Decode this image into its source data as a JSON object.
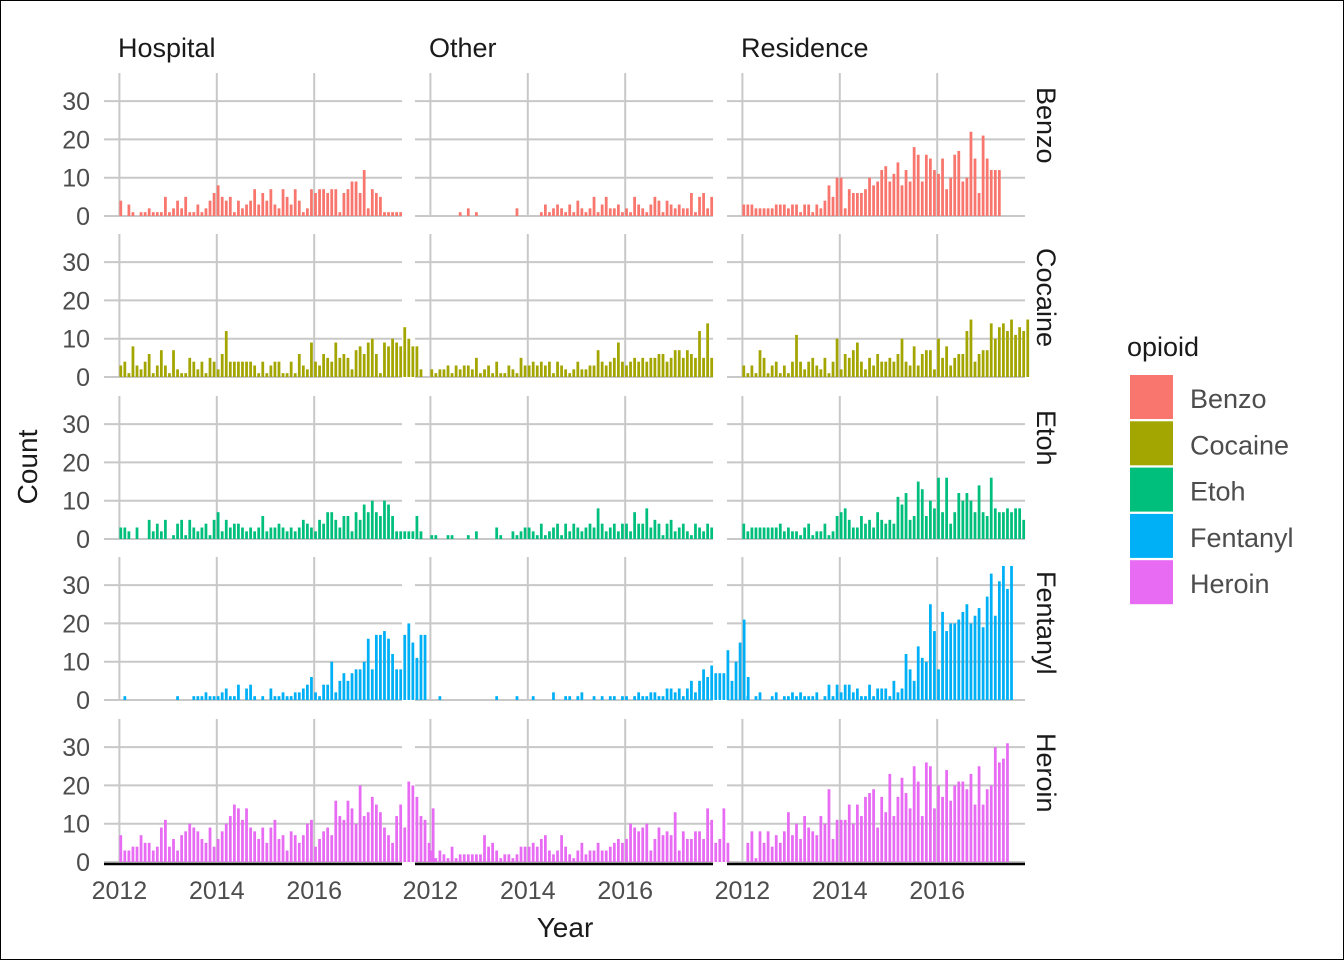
{
  "chart_data": {
    "type": "bar",
    "layout": "facet-grid",
    "xlabel": "Year",
    "ylabel": "Count",
    "legend": {
      "title": "opioid",
      "position": "right",
      "entries": [
        {
          "label": "Benzo",
          "color": "#F8766D"
        },
        {
          "label": "Cocaine",
          "color": "#A3A500"
        },
        {
          "label": "Etoh",
          "color": "#00BF7D"
        },
        {
          "label": "Fentanyl",
          "color": "#00B0F6"
        },
        {
          "label": "Heroin",
          "color": "#E76BF3"
        }
      ]
    },
    "columns": [
      "Hospital",
      "Other",
      "Residence"
    ],
    "rows": [
      "Benzo",
      "Cocaine",
      "Etoh",
      "Fentanyl",
      "Heroin"
    ],
    "x_ticks": [
      2012,
      2014,
      2016
    ],
    "xlim": [
      2012,
      2017.5
    ],
    "y_ticks": [
      0,
      10,
      20,
      30
    ],
    "ylim": [
      0,
      35
    ],
    "x_start": 2012,
    "bar_width_years": 0.0833,
    "series": [
      {
        "row": "Benzo",
        "column": "Hospital",
        "values": [
          4,
          0,
          3,
          1,
          0,
          1,
          1,
          2,
          1,
          1,
          1,
          5,
          1,
          2,
          4,
          2,
          5,
          1,
          1,
          3,
          1,
          2,
          4,
          6,
          8,
          5,
          4,
          5,
          1,
          4,
          2,
          3,
          4,
          7,
          3,
          6,
          4,
          7,
          3,
          2,
          7,
          5,
          3,
          7,
          4,
          1,
          2,
          7,
          6,
          7,
          7,
          6,
          7,
          7,
          1,
          6,
          7,
          9,
          9,
          6,
          12,
          2,
          7,
          6,
          5,
          1,
          1,
          1,
          1,
          1
        ]
      },
      {
        "row": "Benzo",
        "column": "Other",
        "values": [
          0,
          0,
          0,
          0,
          0,
          0,
          0,
          1,
          0,
          2,
          0,
          1,
          0,
          0,
          0,
          0,
          0,
          0,
          0,
          0,
          0,
          2,
          0,
          0,
          0,
          0,
          0,
          1,
          3,
          1,
          2,
          3,
          2,
          1,
          3,
          1,
          4,
          2,
          1,
          2,
          5,
          1,
          3,
          5,
          2,
          2,
          3,
          1,
          2,
          1,
          5,
          3,
          2,
          1,
          3,
          5,
          4,
          1,
          4,
          3,
          2,
          3,
          2,
          2,
          6,
          1,
          5,
          6,
          2,
          5
        ]
      },
      {
        "row": "Benzo",
        "column": "Residence",
        "values": [
          3,
          3,
          3,
          2,
          2,
          2,
          2,
          2,
          3,
          3,
          3,
          2,
          3,
          3,
          1,
          3,
          3,
          1,
          3,
          2,
          4,
          8,
          5,
          10,
          10,
          2,
          7,
          6,
          6,
          6,
          7,
          10,
          8,
          9,
          12,
          13,
          9,
          11,
          14,
          8,
          12,
          9,
          18,
          16,
          9,
          16,
          15,
          12,
          11,
          15,
          7,
          10,
          16,
          17,
          9,
          10,
          22,
          15,
          6,
          21,
          15,
          12,
          12,
          12
        ]
      },
      {
        "row": "Cocaine",
        "column": "Hospital",
        "values": [
          3,
          4,
          1,
          8,
          3,
          2,
          4,
          6,
          1,
          3,
          7,
          3,
          1,
          7,
          2,
          1,
          1,
          5,
          4,
          2,
          4,
          1,
          5,
          4,
          2,
          6,
          12,
          4,
          4,
          4,
          4,
          4,
          4,
          3,
          1,
          4,
          1,
          3,
          4,
          4,
          1,
          1,
          4,
          1,
          6,
          3,
          2,
          9,
          4,
          3,
          6,
          5,
          4,
          9,
          5,
          6,
          5,
          2,
          7,
          8,
          6,
          9,
          10,
          6,
          1,
          9,
          8,
          10,
          9,
          8,
          13,
          10,
          8,
          8,
          2
        ]
      },
      {
        "row": "Cocaine",
        "column": "Other",
        "values": [
          2,
          1,
          2,
          2,
          3,
          1,
          3,
          2,
          3,
          3,
          2,
          5,
          1,
          2,
          3,
          1,
          4,
          1,
          1,
          3,
          2,
          1,
          5,
          3,
          3,
          4,
          3,
          4,
          3,
          4,
          1,
          4,
          3,
          2,
          1,
          2,
          4,
          2,
          2,
          3,
          3,
          7,
          4,
          3,
          4,
          5,
          9,
          4,
          3,
          4,
          5,
          4,
          5,
          4,
          5,
          5,
          6,
          6,
          4,
          5,
          7,
          7,
          5,
          7,
          6,
          5,
          12,
          5,
          14,
          5
        ]
      },
      {
        "row": "Cocaine",
        "column": "Residence",
        "values": [
          3,
          1,
          3,
          1,
          7,
          5,
          1,
          3,
          4,
          1,
          3,
          1,
          4,
          11,
          4,
          2,
          4,
          5,
          3,
          2,
          5,
          1,
          4,
          10,
          2,
          6,
          5,
          7,
          9,
          4,
          2,
          5,
          3,
          6,
          4,
          4,
          5,
          4,
          6,
          10,
          4,
          3,
          8,
          3,
          6,
          7,
          7,
          2,
          10,
          5,
          8,
          3,
          5,
          6,
          6,
          12,
          15,
          4,
          6,
          7,
          7,
          14,
          10,
          13,
          14,
          12,
          15,
          11,
          13,
          12,
          15
        ]
      },
      {
        "row": "Etoh",
        "column": "Hospital",
        "values": [
          3,
          3,
          2,
          0,
          3,
          0,
          0,
          5,
          2,
          4,
          2,
          5,
          0,
          1,
          4,
          5,
          1,
          5,
          3,
          2,
          3,
          4,
          1,
          5,
          7,
          2,
          5,
          3,
          4,
          4,
          3,
          2,
          3,
          2,
          3,
          6,
          2,
          3,
          3,
          4,
          3,
          2,
          3,
          2,
          3,
          5,
          4,
          3,
          2,
          5,
          4,
          7,
          7,
          5,
          3,
          6,
          6,
          2,
          7,
          5,
          9,
          7,
          10,
          7,
          6,
          10,
          9,
          6,
          2,
          2,
          2,
          2,
          2,
          6,
          2
        ]
      },
      {
        "row": "Etoh",
        "column": "Other",
        "values": [
          1,
          1,
          0,
          0,
          1,
          1,
          0,
          0,
          0,
          1,
          0,
          2,
          0,
          0,
          0,
          0,
          3,
          1,
          0,
          0,
          2,
          1,
          2,
          3,
          3,
          2,
          1,
          4,
          1,
          2,
          3,
          4,
          1,
          4,
          2,
          4,
          3,
          2,
          3,
          4,
          3,
          8,
          4,
          2,
          3,
          4,
          2,
          4,
          4,
          2,
          7,
          4,
          4,
          8,
          3,
          5,
          4,
          1,
          4,
          5,
          2,
          3,
          4,
          2,
          1,
          4,
          3,
          2,
          4,
          3
        ]
      },
      {
        "row": "Etoh",
        "column": "Residence",
        "values": [
          4,
          2,
          3,
          3,
          3,
          3,
          3,
          3,
          3,
          4,
          2,
          3,
          2,
          2,
          1,
          3,
          4,
          1,
          2,
          2,
          4,
          1,
          2,
          6,
          7,
          8,
          5,
          3,
          3,
          6,
          4,
          5,
          3,
          7,
          5,
          4,
          5,
          4,
          11,
          9,
          12,
          5,
          6,
          15,
          13,
          6,
          10,
          8,
          16,
          7,
          16,
          4,
          7,
          12,
          10,
          12,
          10,
          7,
          14,
          7,
          6,
          16,
          8,
          7,
          7,
          8,
          7,
          8,
          8,
          5
        ]
      },
      {
        "row": "Fentanyl",
        "column": "Hospital",
        "values": [
          0,
          1,
          0,
          0,
          0,
          0,
          0,
          0,
          0,
          0,
          0,
          0,
          0,
          0,
          1,
          0,
          0,
          0,
          1,
          1,
          1,
          2,
          1,
          1,
          1,
          2,
          3,
          1,
          1,
          4,
          0,
          3,
          4,
          1,
          0,
          1,
          0,
          3,
          1,
          1,
          2,
          1,
          1,
          2,
          2,
          3,
          4,
          6,
          2,
          1,
          4,
          4,
          10,
          2,
          5,
          7,
          5,
          7,
          8,
          8,
          10,
          16,
          8,
          17,
          17,
          18,
          16,
          12,
          8,
          8,
          17,
          20,
          15,
          11,
          17,
          17
        ]
      },
      {
        "row": "Fentanyl",
        "column": "Other",
        "values": [
          0,
          0,
          1,
          0,
          0,
          0,
          0,
          0,
          0,
          0,
          0,
          0,
          0,
          0,
          0,
          0,
          1,
          0,
          0,
          0,
          0,
          1,
          0,
          0,
          0,
          1,
          0,
          0,
          0,
          0,
          2,
          0,
          0,
          1,
          1,
          0,
          1,
          2,
          0,
          0,
          1,
          0,
          1,
          0,
          1,
          1,
          0,
          1,
          1,
          0,
          1,
          2,
          1,
          1,
          2,
          2,
          1,
          1,
          3,
          3,
          2,
          3,
          1,
          3,
          5,
          2,
          5,
          8,
          6,
          9,
          7,
          7,
          7,
          13,
          5,
          10,
          15,
          21,
          6
        ]
      },
      {
        "row": "Fentanyl",
        "column": "Residence",
        "values": [
          0,
          1,
          0,
          1,
          2,
          0,
          0,
          1,
          2,
          0,
          1,
          1,
          2,
          1,
          2,
          1,
          1,
          1,
          2,
          0,
          1,
          4,
          1,
          4,
          2,
          4,
          4,
          2,
          3,
          1,
          1,
          4,
          1,
          3,
          3,
          3,
          1,
          5,
          2,
          3,
          12,
          8,
          5,
          14,
          11,
          10,
          25,
          18,
          8,
          23,
          18,
          20,
          20,
          21,
          23,
          25,
          20,
          22,
          24,
          19,
          27,
          33,
          22,
          31,
          35,
          29,
          35
        ]
      },
      {
        "row": "Heroin",
        "column": "Hospital",
        "values": [
          7,
          3,
          3,
          4,
          4,
          7,
          5,
          5,
          3,
          4,
          9,
          11,
          4,
          6,
          3,
          7,
          8,
          10,
          9,
          8,
          6,
          5,
          9,
          4,
          6,
          8,
          10,
          12,
          15,
          14,
          11,
          14,
          9,
          8,
          6,
          9,
          5,
          9,
          11,
          6,
          7,
          3,
          8,
          7,
          5,
          7,
          10,
          11,
          4,
          6,
          8,
          9,
          7,
          16,
          12,
          11,
          16,
          14,
          10,
          20,
          12,
          13,
          17,
          15,
          13,
          9,
          7,
          5,
          12,
          15,
          9,
          21,
          20,
          17,
          12,
          11,
          5,
          14
        ]
      },
      {
        "row": "Heroin",
        "column": "Other",
        "values": [
          3,
          1,
          3,
          2,
          1,
          4,
          1,
          2,
          2,
          2,
          2,
          2,
          2,
          7,
          4,
          5,
          3,
          1,
          2,
          2,
          1,
          2,
          4,
          4,
          4,
          5,
          4,
          6,
          7,
          3,
          2,
          3,
          7,
          4,
          2,
          1,
          3,
          5,
          2,
          3,
          3,
          5,
          3,
          3,
          4,
          5,
          6,
          5,
          6,
          10,
          9,
          8,
          9,
          10,
          3,
          6,
          9,
          7,
          8,
          7,
          13,
          3,
          8,
          6,
          6,
          8,
          8,
          6,
          14,
          11,
          5,
          6,
          14,
          5
        ]
      },
      {
        "row": "Heroin",
        "column": "Residence",
        "values": [
          0,
          5,
          8,
          1,
          8,
          5,
          8,
          4,
          7,
          5,
          8,
          13,
          7,
          10,
          6,
          12,
          9,
          8,
          7,
          12,
          10,
          19,
          6,
          11,
          11,
          11,
          15,
          10,
          15,
          12,
          17,
          18,
          19,
          9,
          17,
          13,
          23,
          12,
          17,
          22,
          18,
          14,
          25,
          21,
          12,
          26,
          25,
          14,
          20,
          17,
          24,
          16,
          20,
          21,
          21,
          19,
          23,
          15,
          25,
          15,
          19,
          20,
          30,
          26,
          27,
          31
        ]
      }
    ]
  }
}
